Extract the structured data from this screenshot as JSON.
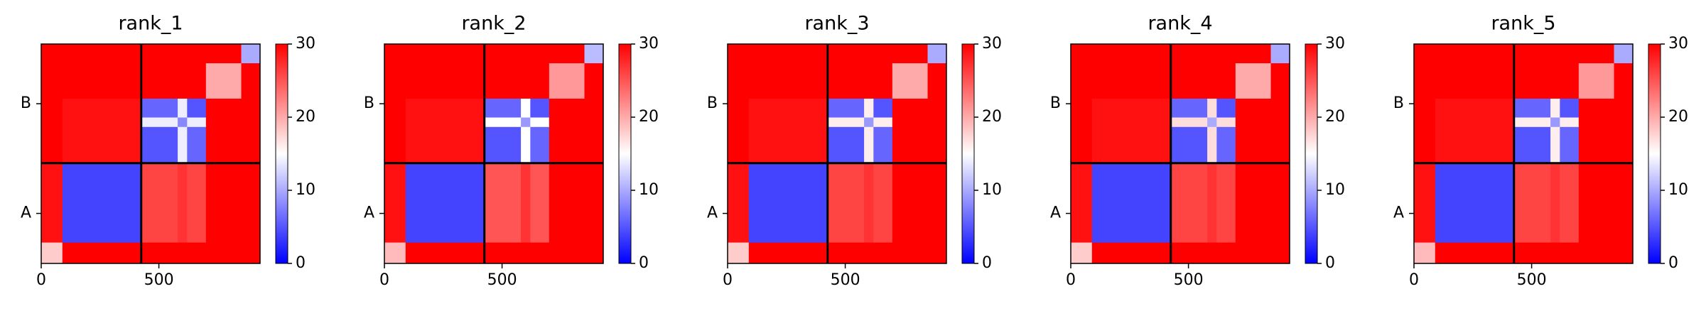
{
  "chart_data": [
    {
      "type": "heatmap",
      "title": "rank_1",
      "edges": [
        0,
        90,
        425,
        580,
        620,
        700,
        850,
        930
      ],
      "z": [
        [
          18,
          30,
          30,
          30,
          30,
          30,
          30
        ],
        [
          29,
          4,
          26,
          27,
          26,
          30,
          30
        ],
        [
          30,
          29,
          5,
          14,
          6,
          30,
          30
        ],
        [
          30,
          29,
          14,
          8,
          14,
          30,
          30
        ],
        [
          30,
          29,
          6,
          14,
          5,
          30,
          30
        ],
        [
          30,
          30,
          30,
          30,
          30,
          20,
          30
        ],
        [
          30,
          30,
          30,
          30,
          30,
          30,
          10
        ]
      ],
      "xlim": [
        0,
        930
      ],
      "ylim": [
        930,
        0
      ],
      "xticks": [
        0,
        500
      ],
      "yticks": [
        {
          "value": 212,
          "label": "A"
        },
        {
          "value": 677,
          "label": "B"
        }
      ],
      "boundaries": [
        425
      ],
      "clim": [
        0,
        30
      ],
      "cticks": [
        0,
        10,
        20,
        30
      ],
      "cmap": [
        "#0000ff",
        "#ffffff",
        "#ff0000"
      ]
    },
    {
      "type": "heatmap",
      "title": "rank_2",
      "edges": [
        0,
        90,
        425,
        580,
        620,
        700,
        850,
        930
      ],
      "z": [
        [
          19,
          30,
          30,
          30,
          30,
          30,
          30
        ],
        [
          29,
          4,
          25,
          27,
          25,
          30,
          30
        ],
        [
          30,
          29,
          5,
          15,
          6,
          30,
          30
        ],
        [
          30,
          29,
          15,
          9,
          15,
          30,
          30
        ],
        [
          30,
          29,
          6,
          15,
          5,
          30,
          30
        ],
        [
          30,
          30,
          30,
          30,
          30,
          21,
          30
        ],
        [
          30,
          30,
          30,
          30,
          30,
          30,
          11
        ]
      ],
      "xlim": [
        0,
        930
      ],
      "ylim": [
        930,
        0
      ],
      "xticks": [
        0,
        500
      ],
      "yticks": [
        {
          "value": 212,
          "label": "A"
        },
        {
          "value": 677,
          "label": "B"
        }
      ],
      "boundaries": [
        425
      ],
      "clim": [
        0,
        30
      ],
      "cticks": [
        0,
        10,
        20,
        30
      ],
      "cmap": [
        "#0000ff",
        "#ffffff",
        "#ff0000"
      ]
    },
    {
      "type": "heatmap",
      "title": "rank_3",
      "edges": [
        0,
        90,
        425,
        580,
        620,
        700,
        850,
        930
      ],
      "z": [
        [
          18,
          30,
          30,
          30,
          30,
          30,
          30
        ],
        [
          29,
          4,
          26,
          27,
          26,
          30,
          30
        ],
        [
          30,
          29,
          5,
          16,
          6,
          30,
          30
        ],
        [
          30,
          29,
          16,
          9,
          16,
          30,
          30
        ],
        [
          30,
          29,
          6,
          16,
          5,
          30,
          30
        ],
        [
          30,
          30,
          30,
          30,
          30,
          20,
          30
        ],
        [
          30,
          30,
          30,
          30,
          30,
          30,
          10
        ]
      ],
      "xlim": [
        0,
        930
      ],
      "ylim": [
        930,
        0
      ],
      "xticks": [
        0,
        500
      ],
      "yticks": [
        {
          "value": 212,
          "label": "A"
        },
        {
          "value": 677,
          "label": "B"
        }
      ],
      "boundaries": [
        425
      ],
      "clim": [
        0,
        30
      ],
      "cticks": [
        0,
        10,
        20,
        30
      ],
      "cmap": [
        "#0000ff",
        "#ffffff",
        "#ff0000"
      ]
    },
    {
      "type": "heatmap",
      "title": "rank_4",
      "edges": [
        0,
        90,
        425,
        580,
        620,
        700,
        850,
        930
      ],
      "z": [
        [
          18,
          30,
          30,
          30,
          30,
          30,
          30
        ],
        [
          29,
          4,
          26,
          27,
          26,
          30,
          30
        ],
        [
          30,
          29,
          5,
          17,
          6,
          30,
          30
        ],
        [
          30,
          29,
          17,
          10,
          17,
          30,
          30
        ],
        [
          30,
          29,
          6,
          17,
          5,
          30,
          30
        ],
        [
          30,
          30,
          30,
          30,
          30,
          20,
          30
        ],
        [
          30,
          30,
          30,
          30,
          30,
          30,
          10
        ]
      ],
      "xlim": [
        0,
        930
      ],
      "ylim": [
        930,
        0
      ],
      "xticks": [
        0,
        500
      ],
      "yticks": [
        {
          "value": 212,
          "label": "A"
        },
        {
          "value": 677,
          "label": "B"
        }
      ],
      "boundaries": [
        425
      ],
      "clim": [
        0,
        30
      ],
      "cticks": [
        0,
        10,
        20,
        30
      ],
      "cmap": [
        "#0000ff",
        "#ffffff",
        "#ff0000"
      ]
    },
    {
      "type": "heatmap",
      "title": "rank_5",
      "edges": [
        0,
        90,
        425,
        580,
        620,
        700,
        850,
        930
      ],
      "z": [
        [
          19,
          30,
          30,
          30,
          30,
          30,
          30
        ],
        [
          29,
          4,
          26,
          27,
          26,
          30,
          30
        ],
        [
          30,
          29,
          5,
          16,
          6,
          30,
          30
        ],
        [
          30,
          29,
          16,
          9,
          16,
          30,
          30
        ],
        [
          30,
          29,
          6,
          16,
          5,
          30,
          30
        ],
        [
          30,
          30,
          30,
          30,
          30,
          21,
          30
        ],
        [
          30,
          30,
          30,
          30,
          30,
          30,
          10
        ]
      ],
      "xlim": [
        0,
        930
      ],
      "ylim": [
        930,
        0
      ],
      "xticks": [
        0,
        500
      ],
      "yticks": [
        {
          "value": 212,
          "label": "A"
        },
        {
          "value": 677,
          "label": "B"
        }
      ],
      "boundaries": [
        425
      ],
      "clim": [
        0,
        30
      ],
      "cticks": [
        0,
        10,
        20,
        30
      ],
      "cmap": [
        "#0000ff",
        "#ffffff",
        "#ff0000"
      ]
    }
  ]
}
